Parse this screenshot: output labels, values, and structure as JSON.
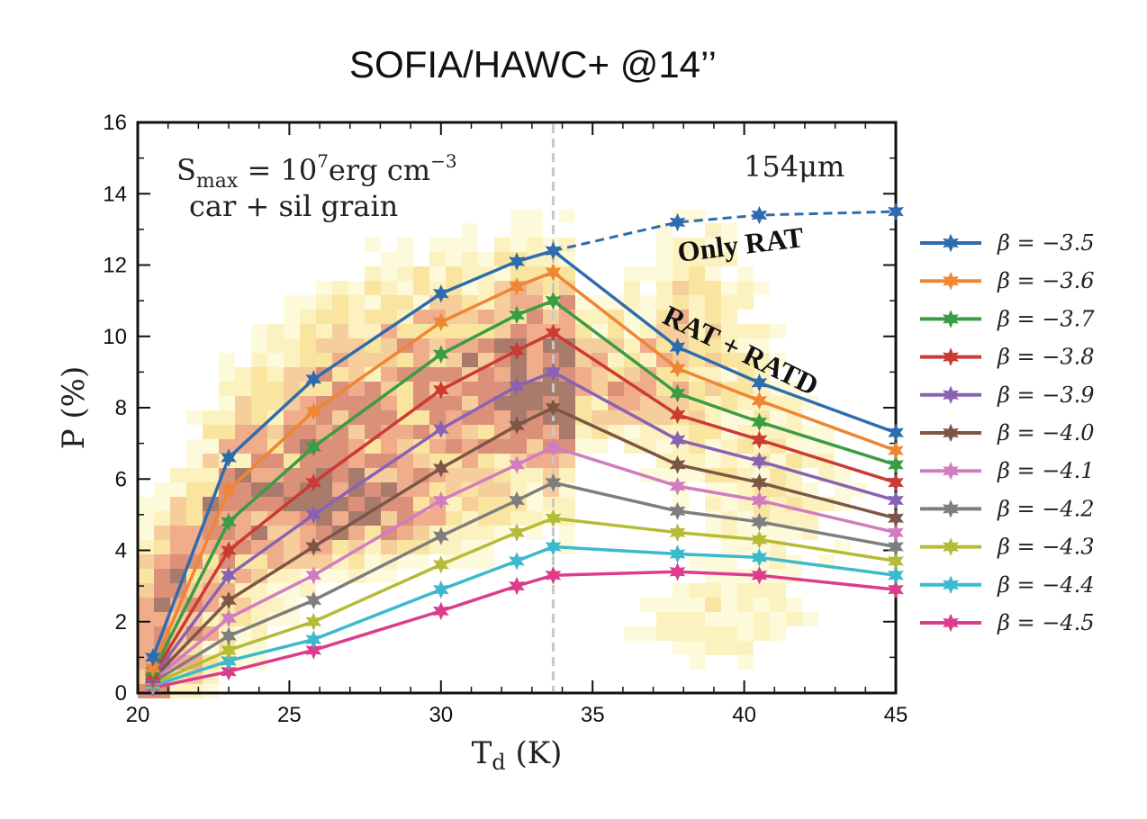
{
  "title": "SOFIA/HAWC+ @14’’",
  "chart_data": {
    "type": "line",
    "title": "SOFIA/HAWC+ @14’’",
    "xlabel": "T_d (K)",
    "ylabel": "P (%)",
    "xlim": [
      20,
      45
    ],
    "ylim": [
      0,
      16
    ],
    "xticks": [
      20,
      25,
      30,
      35,
      40,
      45
    ],
    "yticks": [
      0,
      2,
      4,
      6,
      8,
      10,
      12,
      14,
      16
    ],
    "x": [
      20.5,
      23.0,
      25.8,
      30.0,
      32.5,
      33.7,
      37.8,
      40.5,
      45.0
    ],
    "split_temperature": 33.7,
    "series": [
      {
        "name": "β = −3.5",
        "color": "#2f6cae",
        "values": [
          1.0,
          6.6,
          8.8,
          11.2,
          12.1,
          12.4,
          9.7,
          8.7,
          7.3
        ]
      },
      {
        "name": "β = −3.6",
        "color": "#ee8633",
        "values": [
          0.7,
          5.7,
          7.9,
          10.4,
          11.4,
          11.8,
          9.1,
          8.2,
          6.8
        ]
      },
      {
        "name": "β = −3.7",
        "color": "#3a9c44",
        "values": [
          0.6,
          4.8,
          6.9,
          9.5,
          10.6,
          11.0,
          8.4,
          7.6,
          6.4
        ]
      },
      {
        "name": "β = −3.8",
        "color": "#cc3a34",
        "values": [
          0.5,
          4.0,
          5.9,
          8.5,
          9.6,
          10.1,
          7.8,
          7.1,
          5.9
        ]
      },
      {
        "name": "β = −3.9",
        "color": "#8a62b3",
        "values": [
          0.45,
          3.3,
          5.0,
          7.4,
          8.6,
          9.0,
          7.1,
          6.5,
          5.4
        ]
      },
      {
        "name": "β = −4.0",
        "color": "#7d5646",
        "values": [
          0.4,
          2.6,
          4.1,
          6.3,
          7.5,
          8.0,
          6.4,
          5.9,
          4.9
        ]
      },
      {
        "name": "β = −4.1",
        "color": "#d27cc0",
        "values": [
          0.35,
          2.1,
          3.3,
          5.4,
          6.4,
          6.9,
          5.8,
          5.4,
          4.5
        ]
      },
      {
        "name": "β = −4.2",
        "color": "#7e7e7e",
        "values": [
          0.3,
          1.6,
          2.6,
          4.4,
          5.4,
          5.9,
          5.1,
          4.8,
          4.1
        ]
      },
      {
        "name": "β = −4.3",
        "color": "#b5bb36",
        "values": [
          0.25,
          1.2,
          2.0,
          3.6,
          4.5,
          4.9,
          4.5,
          4.3,
          3.7
        ]
      },
      {
        "name": "β = −4.4",
        "color": "#3cb9cc",
        "values": [
          0.2,
          0.9,
          1.5,
          2.9,
          3.7,
          4.1,
          3.9,
          3.8,
          3.3
        ]
      },
      {
        "name": "β = −4.5",
        "color": "#dc3c8c",
        "values": [
          0.15,
          0.6,
          1.2,
          2.3,
          3.0,
          3.3,
          3.4,
          3.3,
          2.9
        ]
      }
    ],
    "only_rat_extension": {
      "series": "β = −3.5",
      "x": [
        33.7,
        37.8,
        40.5,
        45.0
      ],
      "values": [
        12.4,
        13.2,
        13.4,
        13.5
      ]
    },
    "annotations": {
      "smax_prefix": "S",
      "smax_sub": "max",
      "smax_mid": " = 10",
      "smax_exp": "7",
      "smax_unit": "erg cm",
      "smax_unit_exp": "−3",
      "grain": "car + sil grain",
      "wavelength": "154μm",
      "only_rat": "Only RAT",
      "rat_ratd": "RAT + RATD"
    },
    "legend_position": "right",
    "background_histogram": "observed P vs T_d density (yellow to dark red)"
  }
}
